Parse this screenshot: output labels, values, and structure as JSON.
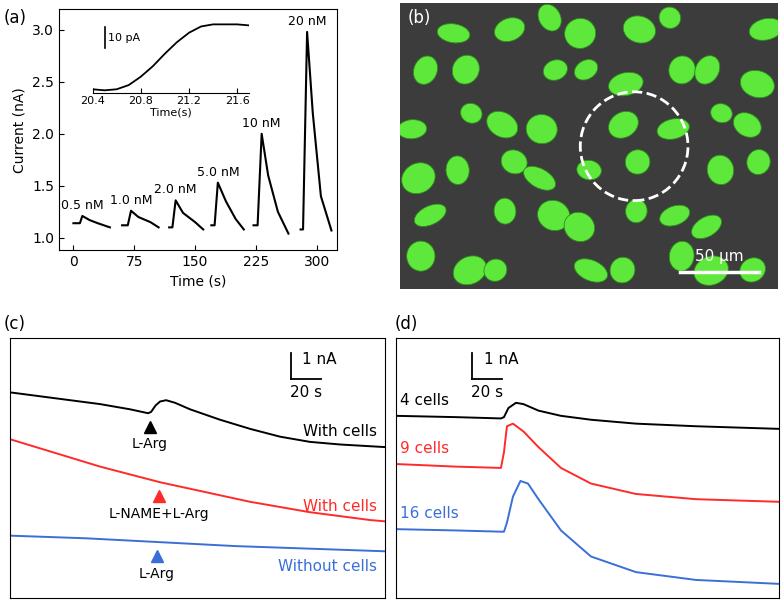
{
  "chart_data": [
    {
      "type": "line",
      "title": "(a)",
      "x_label": "Time (s)",
      "y_label": "Current (nA)",
      "xlim": [
        -18,
        325
      ],
      "ylim": [
        0.88,
        3.2
      ],
      "xticks": [
        0,
        75,
        150,
        225,
        300
      ],
      "yticks": [
        1.0,
        1.5,
        2.0,
        2.5,
        3.0
      ],
      "series": [
        {
          "name": "0.5 nM",
          "color": "#000000",
          "x": [
            0,
            8,
            11,
            20,
            30,
            45
          ],
          "values": [
            1.14,
            1.14,
            1.21,
            1.17,
            1.14,
            1.1
          ]
        },
        {
          "name": "1.0 nM",
          "color": "#000000",
          "x": [
            60,
            67,
            71,
            80,
            95,
            105
          ],
          "values": [
            1.12,
            1.12,
            1.26,
            1.2,
            1.15,
            1.1
          ]
        },
        {
          "name": "2.0 nM",
          "color": "#000000",
          "x": [
            118,
            122,
            126,
            135,
            150,
            160
          ],
          "values": [
            1.1,
            1.1,
            1.36,
            1.24,
            1.15,
            1.08
          ]
        },
        {
          "name": "5.0 nM",
          "color": "#000000",
          "x": [
            170,
            174,
            178,
            188,
            200,
            210
          ],
          "values": [
            1.12,
            1.12,
            1.53,
            1.35,
            1.18,
            1.08
          ]
        },
        {
          "name": "10 nM",
          "color": "#000000",
          "x": [
            222,
            227,
            232,
            240,
            252,
            265
          ],
          "values": [
            1.12,
            1.12,
            2.0,
            1.6,
            1.25,
            1.04
          ]
        },
        {
          "name": "20 nM",
          "color": "#000000",
          "x": [
            280,
            283,
            288,
            295,
            305,
            318
          ],
          "values": [
            1.08,
            1.08,
            2.98,
            2.2,
            1.4,
            1.07
          ]
        }
      ],
      "inset": {
        "x_label": "Time(s)",
        "xlim": [
          20.4,
          21.7
        ],
        "xticks": [
          20.4,
          20.8,
          21.2,
          21.6
        ],
        "ylim": [
          0,
          36
        ],
        "tick_labels": "x",
        "color": "#000000",
        "x": [
          20.4,
          20.5,
          20.6,
          20.7,
          20.8,
          20.9,
          21.0,
          21.1,
          21.2,
          21.3,
          21.4,
          21.5,
          21.6,
          21.7
        ],
        "values": [
          2,
          1.5,
          2,
          4,
          8,
          13,
          19,
          24.5,
          29,
          32,
          33,
          33,
          33,
          32.5
        ],
        "scale_bar": {
          "y": 10,
          "y_label": "10 pA"
        }
      }
    },
    {
      "type": "image",
      "title": "(b)",
      "xlim": [
        0,
        240
      ],
      "ylim": [
        0,
        180
      ],
      "tick_labels": false,
      "scale_bar": {
        "x": 50,
        "x_label": "50 µm"
      }
    },
    {
      "type": "line",
      "title": "(c)",
      "tick_labels": false,
      "xlim": [
        0,
        250
      ],
      "ylim": [
        0,
        10
      ],
      "series": [
        {
          "name": "With cells",
          "color": "#000000",
          "x": [
            0,
            20,
            40,
            60,
            80,
            92,
            94,
            97,
            100,
            104,
            110,
            120,
            140,
            160,
            180,
            200,
            220,
            250
          ],
          "values": [
            7.9,
            7.75,
            7.6,
            7.45,
            7.25,
            7.1,
            7.15,
            7.4,
            7.55,
            7.6,
            7.5,
            7.25,
            6.85,
            6.5,
            6.2,
            6.0,
            5.9,
            5.8
          ],
          "events": [
            {
              "time": 93,
              "label": "L-Arg"
            }
          ]
        },
        {
          "name": "With cells",
          "color": "#ff2a2a",
          "x": [
            0,
            20,
            40,
            60,
            80,
            100,
            120,
            140,
            160,
            180,
            200,
            220,
            240,
            250
          ],
          "values": [
            6.1,
            5.75,
            5.4,
            5.05,
            4.75,
            4.45,
            4.2,
            3.95,
            3.7,
            3.5,
            3.3,
            3.15,
            3.0,
            2.95
          ],
          "events": [
            {
              "time": 99,
              "label": "L-NAME+L-Arg"
            }
          ]
        },
        {
          "name": "Without cells",
          "color": "#3a6fd8",
          "x": [
            0,
            50,
            100,
            150,
            200,
            250
          ],
          "values": [
            2.4,
            2.3,
            2.15,
            2.0,
            1.9,
            1.8
          ],
          "events": [
            {
              "time": 98,
              "label": "L-Arg"
            }
          ]
        }
      ],
      "scale_bar": {
        "x": 20,
        "x_label": "20 s",
        "y": 1,
        "y_label": "1 nA"
      }
    },
    {
      "type": "line",
      "title": "(d)",
      "tick_labels": false,
      "xlim": [
        0,
        255
      ],
      "ylim": [
        0,
        10
      ],
      "series": [
        {
          "name": "4 cells",
          "color": "#000000",
          "x": [
            0,
            40,
            70,
            72,
            75,
            80,
            85,
            95,
            110,
            130,
            160,
            200,
            255
          ],
          "values": [
            7.0,
            6.95,
            6.9,
            6.95,
            7.3,
            7.5,
            7.45,
            7.2,
            7.0,
            6.85,
            6.7,
            6.6,
            6.5
          ]
        },
        {
          "name": "9 cells",
          "color": "#ff2a2a",
          "x": [
            0,
            40,
            70,
            72,
            74,
            78,
            85,
            95,
            110,
            130,
            160,
            200,
            255
          ],
          "values": [
            5.15,
            5.05,
            5.0,
            5.6,
            6.6,
            6.7,
            6.4,
            5.8,
            5.0,
            4.4,
            4.0,
            3.8,
            3.7
          ]
        },
        {
          "name": "16 cells",
          "color": "#3a6fd8",
          "x": [
            0,
            40,
            72,
            74,
            78,
            83,
            88,
            95,
            110,
            130,
            160,
            200,
            255
          ],
          "values": [
            2.65,
            2.6,
            2.55,
            2.9,
            3.9,
            4.5,
            4.4,
            3.8,
            2.6,
            1.6,
            1.0,
            0.7,
            0.55
          ]
        }
      ],
      "scale_bar": {
        "x": 20,
        "x_label": "20 s",
        "y": 1,
        "y_label": "1 nA"
      }
    }
  ]
}
